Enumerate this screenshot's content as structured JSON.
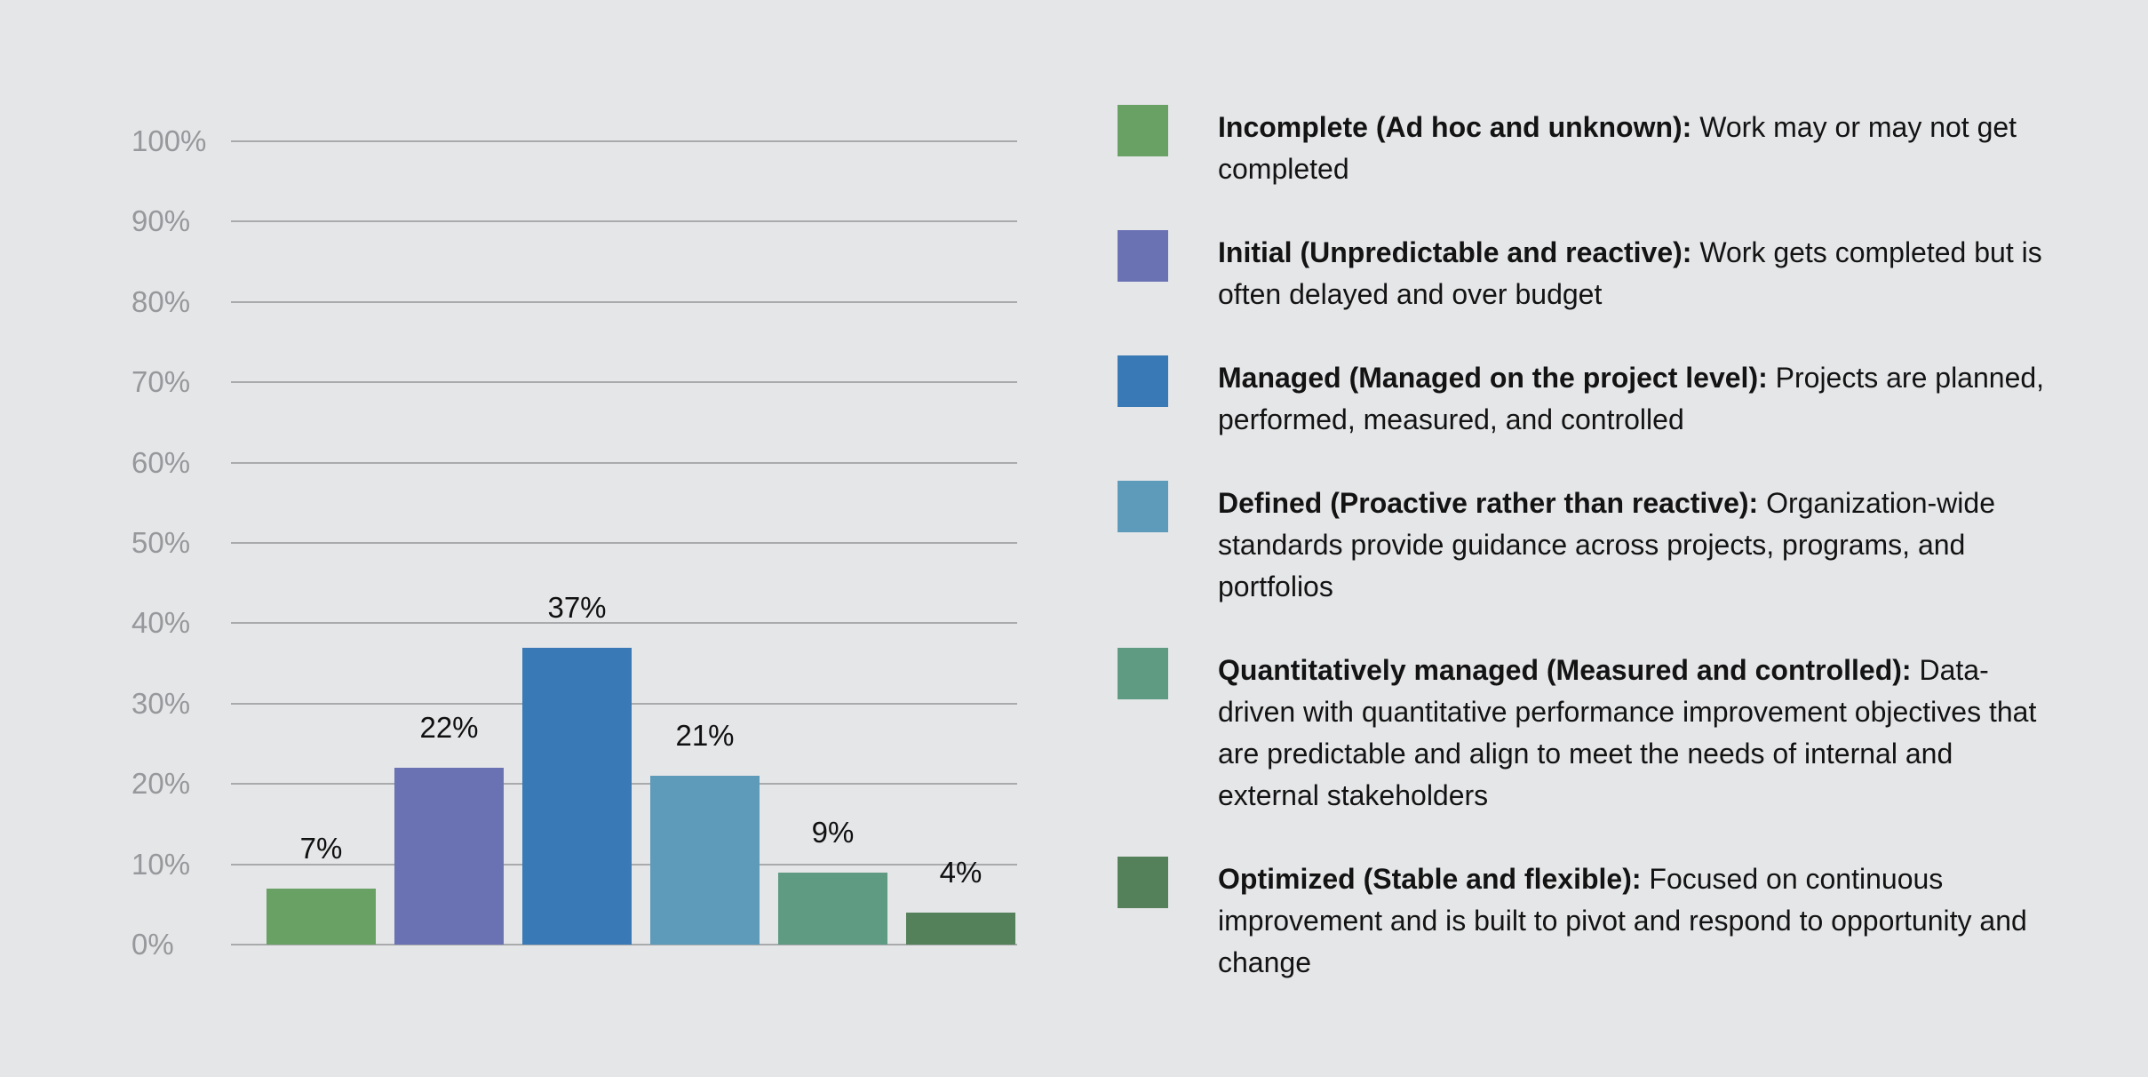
{
  "page": {
    "background_color": "#e5e6e8",
    "text_color": "#131313",
    "gridline_color": "#a9aaac",
    "axis_label_color": "#97989b"
  },
  "chart_data": {
    "type": "bar",
    "title": "",
    "xlabel": "",
    "ylabel": "",
    "categories": [
      "Incomplete (Ad hoc and unknown)",
      "Initial (Unpredictable and reactive)",
      "Managed (Managed on the project level)",
      "Defined (Proactive rather than reactive)",
      "Quantitatively managed (Measured and controlled)",
      "Optimized (Stable and flexible)"
    ],
    "values": [
      7,
      22,
      37,
      21,
      9,
      4
    ],
    "value_labels": [
      "7%",
      "22%",
      "37%",
      "21%",
      "9%",
      "4%"
    ],
    "bar_colors": [
      "#69a064",
      "#6a72b3",
      "#3979b5",
      "#5e9bba",
      "#5f9a83",
      "#55815a"
    ],
    "ylim": [
      0,
      100
    ],
    "y_tick_step": 10,
    "y_tick_labels": [
      "0%",
      "10%",
      "20%",
      "30%",
      "40%",
      "50%",
      "60%",
      "70%",
      "80%",
      "90%",
      "100%"
    ],
    "grid": true,
    "x_tick_labels_shown": false,
    "legend_position": "right"
  },
  "legend": {
    "items": [
      {
        "term": "Incomplete (Ad hoc and unknown):",
        "description": "Work may or may not get completed",
        "color": "#69a064"
      },
      {
        "term": "Initial (Unpredictable and reactive):",
        "description": "Work gets completed but is often delayed and over budget",
        "color": "#6a72b3"
      },
      {
        "term": "Managed (Managed on the project level):",
        "description": "Projects are planned, performed, measured, and controlled",
        "color": "#3979b5"
      },
      {
        "term": "Defined (Proactive rather than reactive):",
        "description": "Organization-wide standards provide guidance across projects, programs, and portfolios",
        "color": "#5e9bba"
      },
      {
        "term": "Quantitatively managed (Measured and controlled):",
        "description": "Data-driven with quantitative performance improvement objectives that are predictable and align to meet the needs of internal and external stakeholders",
        "color": "#5f9a83"
      },
      {
        "term": "Optimized (Stable and flexible):",
        "description": "Focused on continuous improvement and is built to pivot and respond to opportunity and change",
        "color": "#55815a"
      }
    ]
  }
}
